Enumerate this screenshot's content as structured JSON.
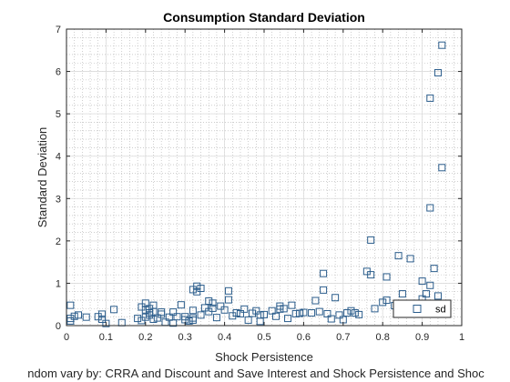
{
  "chart_data": {
    "type": "scatter",
    "title": "Consumption Standard Deviation",
    "xlabel": "Shock Persistence",
    "ylabel": "Standard Deviation",
    "caption": "ndom vary by: CRRA and Discount and Save Interest and Shock Persistence and Shoc",
    "xlim": [
      0,
      1
    ],
    "ylim": [
      0,
      7
    ],
    "xticks": [
      0,
      0.1,
      0.2,
      0.3,
      0.4,
      0.5,
      0.6,
      0.7,
      0.8,
      0.9,
      1
    ],
    "yticks": [
      0,
      1,
      2,
      3,
      4,
      5,
      6,
      7
    ],
    "grid": true,
    "minor_grid": true,
    "legend_position": "bottom-right",
    "marker": "square",
    "series": [
      {
        "name": "sd",
        "color": "#2b5d8c",
        "points": [
          [
            0.01,
            0.48
          ],
          [
            0.01,
            0.17
          ],
          [
            0.01,
            0.11
          ],
          [
            0.02,
            0.22
          ],
          [
            0.03,
            0.25
          ],
          [
            0.05,
            0.2
          ],
          [
            0.08,
            0.21
          ],
          [
            0.09,
            0.15
          ],
          [
            0.09,
            0.27
          ],
          [
            0.1,
            0.05
          ],
          [
            0.12,
            0.38
          ],
          [
            0.14,
            0.07
          ],
          [
            0.18,
            0.17
          ],
          [
            0.19,
            0.12
          ],
          [
            0.19,
            0.44
          ],
          [
            0.2,
            0.37
          ],
          [
            0.2,
            0.2
          ],
          [
            0.2,
            0.53
          ],
          [
            0.21,
            0.4
          ],
          [
            0.21,
            0.3
          ],
          [
            0.21,
            0.25
          ],
          [
            0.22,
            0.48
          ],
          [
            0.22,
            0.15
          ],
          [
            0.22,
            0.33
          ],
          [
            0.23,
            0.18
          ],
          [
            0.24,
            0.27
          ],
          [
            0.24,
            0.32
          ],
          [
            0.25,
            0.08
          ],
          [
            0.26,
            0.2
          ],
          [
            0.27,
            0.06
          ],
          [
            0.27,
            0.32
          ],
          [
            0.28,
            0.21
          ],
          [
            0.29,
            0.49
          ],
          [
            0.3,
            0.21
          ],
          [
            0.3,
            0.14
          ],
          [
            0.31,
            0.11
          ],
          [
            0.32,
            0.18
          ],
          [
            0.32,
            0.36
          ],
          [
            0.32,
            0.13
          ],
          [
            0.32,
            0.85
          ],
          [
            0.33,
            0.8
          ],
          [
            0.33,
            0.93
          ],
          [
            0.34,
            0.88
          ],
          [
            0.34,
            0.25
          ],
          [
            0.35,
            0.42
          ],
          [
            0.36,
            0.58
          ],
          [
            0.36,
            0.33
          ],
          [
            0.37,
            0.53
          ],
          [
            0.37,
            0.41
          ],
          [
            0.38,
            0.19
          ],
          [
            0.39,
            0.46
          ],
          [
            0.4,
            0.37
          ],
          [
            0.41,
            0.61
          ],
          [
            0.41,
            0.82
          ],
          [
            0.42,
            0.23
          ],
          [
            0.43,
            0.3
          ],
          [
            0.44,
            0.28
          ],
          [
            0.45,
            0.39
          ],
          [
            0.46,
            0.13
          ],
          [
            0.47,
            0.29
          ],
          [
            0.48,
            0.35
          ],
          [
            0.49,
            0.25
          ],
          [
            0.49,
            0.1
          ],
          [
            0.5,
            0.26
          ],
          [
            0.52,
            0.35
          ],
          [
            0.53,
            0.22
          ],
          [
            0.54,
            0.39
          ],
          [
            0.54,
            0.46
          ],
          [
            0.55,
            0.4
          ],
          [
            0.56,
            0.17
          ],
          [
            0.57,
            0.48
          ],
          [
            0.58,
            0.28
          ],
          [
            0.59,
            0.29
          ],
          [
            0.6,
            0.31
          ],
          [
            0.62,
            0.3
          ],
          [
            0.63,
            0.59
          ],
          [
            0.64,
            0.33
          ],
          [
            0.65,
            1.23
          ],
          [
            0.65,
            0.84
          ],
          [
            0.66,
            0.28
          ],
          [
            0.67,
            0.16
          ],
          [
            0.68,
            0.66
          ],
          [
            0.69,
            0.25
          ],
          [
            0.7,
            0.14
          ],
          [
            0.71,
            0.3
          ],
          [
            0.72,
            0.35
          ],
          [
            0.73,
            0.3
          ],
          [
            0.74,
            0.26
          ],
          [
            0.76,
            1.28
          ],
          [
            0.77,
            2.02
          ],
          [
            0.77,
            1.2
          ],
          [
            0.78,
            0.4
          ],
          [
            0.8,
            0.55
          ],
          [
            0.81,
            0.6
          ],
          [
            0.81,
            1.15
          ],
          [
            0.83,
            0.47
          ],
          [
            0.84,
            1.65
          ],
          [
            0.85,
            0.75
          ],
          [
            0.87,
            1.58
          ],
          [
            0.88,
            0.38
          ],
          [
            0.89,
            0.3
          ],
          [
            0.9,
            1.05
          ],
          [
            0.9,
            0.63
          ],
          [
            0.91,
            0.75
          ],
          [
            0.92,
            5.37
          ],
          [
            0.92,
            2.78
          ],
          [
            0.92,
            0.95
          ],
          [
            0.93,
            1.35
          ],
          [
            0.94,
            5.97
          ],
          [
            0.94,
            0.7
          ],
          [
            0.95,
            3.73
          ],
          [
            0.95,
            6.62
          ]
        ]
      }
    ]
  }
}
